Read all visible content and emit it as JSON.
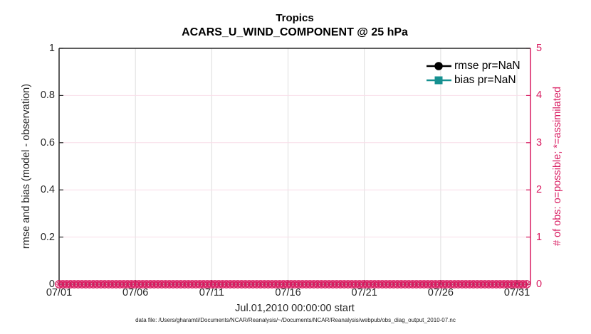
{
  "figure": {
    "background": "#ffffff",
    "axes_color": "#262626"
  },
  "chart_data": {
    "type": "line",
    "title": "Tropics",
    "subtitle": "ACARS_U_WIND_COMPONENT @ 25 hPa",
    "xlabel": "Jul.01,2010 00:00:00 start",
    "left_axis": {
      "label": "rmse and bias (model - observation)",
      "ticks": [
        "0",
        "0.2",
        "0.4",
        "0.6",
        "0.8",
        "1"
      ],
      "lim": [
        0,
        1
      ],
      "color": "#262626"
    },
    "right_axis": {
      "label": "# of obs: o=possible; *=assimilated",
      "ticks": [
        "0",
        "1",
        "2",
        "3",
        "4",
        "5"
      ],
      "lim": [
        0,
        5
      ],
      "color": "#d81b60"
    },
    "x_axis": {
      "tick_labels": [
        "07/01",
        "07/06",
        "07/11",
        "07/16",
        "07/21",
        "07/26",
        "07/31"
      ],
      "range": "Jul 01 2010 through Aug 01 2010",
      "color": "#262626"
    },
    "grid": {
      "visible": true,
      "vertical_color": "#dedede",
      "horizontal_color": "#f8dde8"
    },
    "legend": {
      "position": "top-right-inside",
      "box": false,
      "entries": [
        {
          "label": "rmse pr=NaN",
          "color": "#000000",
          "marker": "circle"
        },
        {
          "label": "bias pr=NaN",
          "color": "#169090",
          "marker": "square"
        }
      ]
    },
    "series": [
      {
        "name": "rmse",
        "axis": "left",
        "color": "#000000",
        "marker": "circle",
        "values": null,
        "note": "all NaN - no curve drawn"
      },
      {
        "name": "bias",
        "axis": "left",
        "color": "#169090",
        "marker": "square",
        "values": null,
        "note": "all NaN - no curve drawn"
      },
      {
        "name": "num_obs_possible",
        "axis": "right",
        "color": "#d81b60",
        "marker": "o",
        "constant_value": 0,
        "n_points": 124
      },
      {
        "name": "num_obs_assimilated",
        "axis": "right",
        "color": "#d81b60",
        "marker": "*",
        "constant_value": 0,
        "n_points": 124
      }
    ]
  },
  "caption": "data file: /Users/gharamti/Documents/NCAR/Reanalysis/~/Documents/NCAR/Reanalysis/webpub/obs_diag_output_2010-07.nc"
}
